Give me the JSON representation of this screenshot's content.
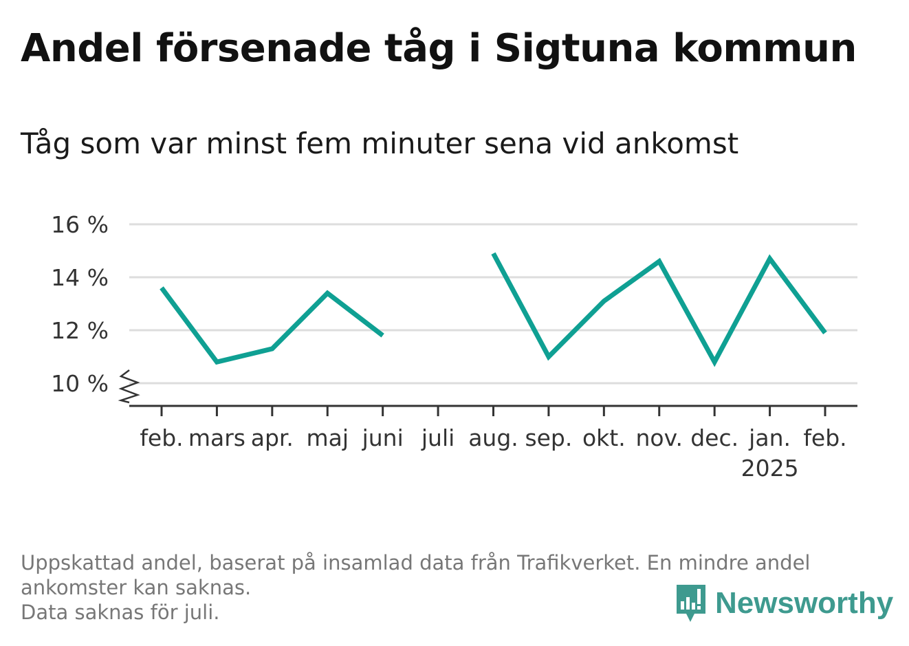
{
  "title": "Andel försenade tåg i Sigtuna kommun",
  "subtitle": "Tåg som var minst fem minuter sena vid ankomst",
  "footnote": {
    "line1": "Uppskattad andel, baserat på insamlad data från Trafikverket. En mindre andel ankomster kan saknas.",
    "line2": "Data saknas för juli."
  },
  "brand": {
    "name": "Newsworthy",
    "icon": "bar-chart-speech-bubble-icon",
    "color": "#3e9a8f"
  },
  "colors": {
    "line": "#0fa093",
    "grid": "#dddddd",
    "axis": "#333333"
  },
  "chart_data": {
    "type": "line",
    "title": "Andel försenade tåg i Sigtuna kommun",
    "subtitle": "Tåg som var minst fem minuter sena vid ankomst",
    "categories": [
      "feb.",
      "mars",
      "apr.",
      "maj",
      "juni",
      "juli",
      "aug.",
      "sep.",
      "okt.",
      "nov.",
      "dec.",
      "jan.",
      "feb."
    ],
    "year_label": {
      "category_index": 11,
      "text": "2025"
    },
    "series": [
      {
        "values": [
          13.6,
          10.8,
          11.3,
          13.4,
          11.8,
          null,
          14.9,
          11.0,
          13.1,
          14.6,
          10.8,
          14.7,
          11.9
        ]
      }
    ],
    "y_ticks": [
      10,
      12,
      14,
      16
    ],
    "y_tick_labels": [
      "10 %",
      "12 %",
      "14 %",
      "16 %"
    ],
    "ylim": [
      9.2,
      16
    ],
    "y_axis_break": true,
    "grid": true,
    "legend": "none"
  }
}
